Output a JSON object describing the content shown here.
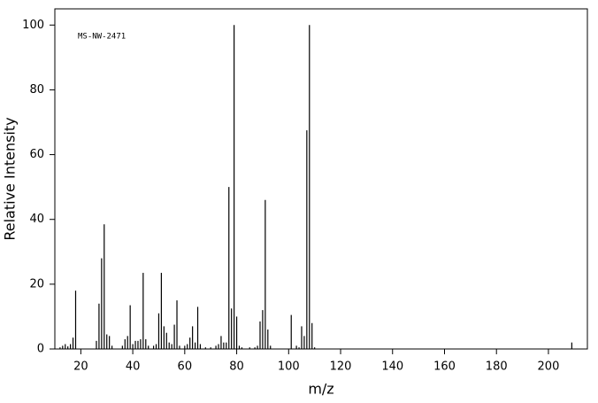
{
  "chart_data": {
    "type": "bar",
    "annotation": "MS-NW-2471",
    "xlabel": "m/z",
    "ylabel": "Relative Intensity",
    "color": "#000000",
    "x": [
      12,
      13,
      14,
      15,
      16,
      17,
      18,
      26,
      27,
      28,
      29,
      30,
      31,
      32,
      36,
      37,
      38,
      39,
      40,
      41,
      42,
      43,
      44,
      45,
      46,
      48,
      49,
      50,
      51,
      52,
      53,
      54,
      55,
      56,
      57,
      58,
      60,
      61,
      62,
      63,
      64,
      65,
      66,
      68,
      70,
      72,
      73,
      74,
      75,
      76,
      77,
      78,
      79,
      80,
      81,
      82,
      85,
      87,
      88,
      89,
      90,
      91,
      92,
      93,
      101,
      103,
      104,
      105,
      106,
      107,
      108,
      109,
      110,
      209
    ],
    "values": [
      0.5,
      1,
      1.5,
      0.8,
      1.5,
      3.5,
      18,
      2.5,
      14,
      28,
      38.5,
      4.5,
      4,
      1,
      1,
      3,
      4,
      13.5,
      1.5,
      2.5,
      2.5,
      3,
      23.5,
      3,
      1,
      1,
      1.5,
      11,
      23.5,
      7,
      5,
      2,
      1.5,
      7.5,
      15,
      1,
      1,
      1.5,
      3.5,
      7,
      2,
      13,
      1.5,
      0.5,
      0.5,
      1,
      1.5,
      4,
      2,
      2,
      50,
      12.5,
      100,
      10,
      1,
      0.5,
      0.5,
      0.5,
      1,
      8.5,
      12,
      46,
      6,
      1,
      10.5,
      1,
      0.5,
      7,
      4,
      67.5,
      100,
      8,
      0.5,
      2
    ],
    "xlim": [
      10,
      215
    ],
    "ylim": [
      0,
      105
    ],
    "xticks": [
      20,
      40,
      60,
      80,
      100,
      120,
      140,
      160,
      180,
      200
    ],
    "yticks": [
      0,
      20,
      40,
      60,
      80,
      100
    ]
  }
}
